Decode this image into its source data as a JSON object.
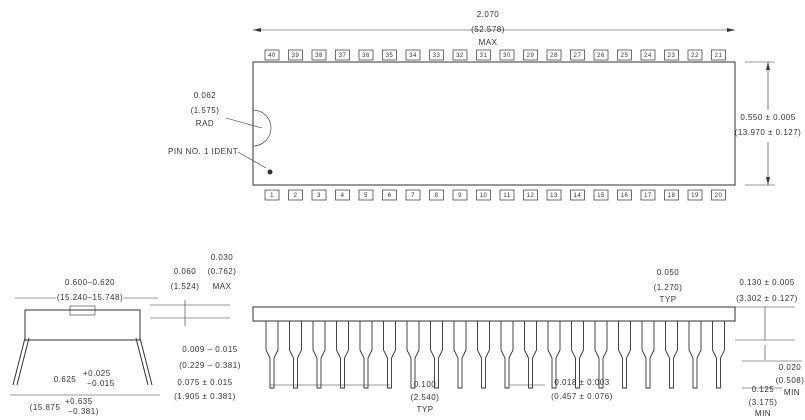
{
  "top_view": {
    "length": "2.070",
    "length_mm": "(52.578)",
    "length_note": "MAX",
    "pins_top": [
      "40",
      "39",
      "38",
      "37",
      "36",
      "35",
      "34",
      "33",
      "32",
      "31",
      "30",
      "29",
      "28",
      "27",
      "26",
      "25",
      "24",
      "23",
      "22",
      "21"
    ],
    "pins_bottom": [
      "1",
      "2",
      "3",
      "4",
      "5",
      "6",
      "7",
      "8",
      "9",
      "10",
      "11",
      "12",
      "13",
      "14",
      "15",
      "16",
      "17",
      "18",
      "19",
      "20"
    ],
    "notch": "0.062",
    "notch_mm": "(1.575)",
    "notch_note": "RAD",
    "ident": "PIN NO. 1 IDENT",
    "width": "0.550 ± 0.005",
    "width_mm": "(13.970 ± 0.127)"
  },
  "end_view": {
    "width": "0.600–0.620",
    "width_mm": "(15.240–15.748)",
    "shoulder": "0.060",
    "shoulder_mm": "(1.524)",
    "standoff": "0.030",
    "standoff_mm": "(0.762)",
    "standoff_note": "MAX",
    "lead_thk": "0.009 – 0.015",
    "lead_thk_mm": "(0.229 – 0.381)",
    "spread": "0.625",
    "spread_tol_plus": "+0.025",
    "spread_tol_minus": "−0.015",
    "spread_mm": "(15.875",
    "spread_mm_plus": "+0.635",
    "spread_mm_minus": "−0.381)",
    "lead_w": "0.075 ± 0.015",
    "lead_w_mm": "(1.905 ± 0.381)"
  },
  "side_view": {
    "end_pitch": "0.050",
    "end_pitch_mm": "(1.270)",
    "end_pitch_note": "TYP",
    "height": "0.130 ± 0.005",
    "height_mm": "(3.302 ± 0.127)",
    "seat": "0.020",
    "seat_mm": "(0.508)",
    "seat_note": "MIN",
    "lead_len": "0.125",
    "lead_len_mm": "(3.175)",
    "lead_len_note": "MIN",
    "pitch": "0.100",
    "pitch_mm": "(2.540)",
    "pitch_note": "TYP",
    "lead_dia": "0.018 ± 0.003",
    "lead_dia_mm": "(0.457 ± 0.076)"
  }
}
